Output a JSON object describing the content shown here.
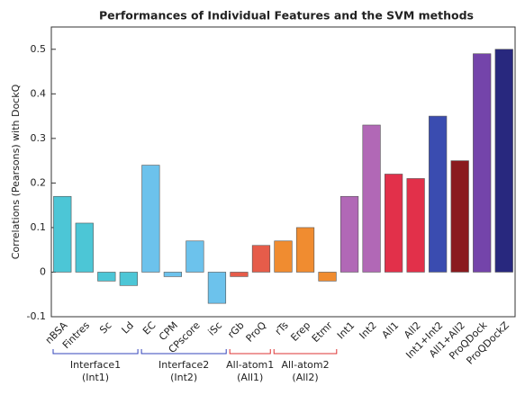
{
  "chart_data": {
    "type": "bar",
    "title": "Performances of Individual Features and the SVM methods",
    "y_label": "Correlations (Pearsons) with DockQ",
    "categories": [
      "nBSA",
      "Fintres",
      "Sc",
      "Ld",
      "EC",
      "CPM",
      "CPscore",
      "iSc",
      "rGb",
      "ProQ",
      "rTs",
      "Erep",
      "Etmr",
      "Int1",
      "Int2",
      "All1",
      "All2",
      "Int1+Int2",
      "All1+All2",
      "ProQDock",
      "ProQDockZ"
    ],
    "values": [
      0.17,
      0.11,
      -0.02,
      -0.03,
      0.24,
      -0.01,
      0.07,
      -0.07,
      -0.01,
      0.06,
      0.07,
      0.1,
      -0.02,
      0.17,
      0.33,
      0.22,
      0.21,
      0.35,
      0.25,
      0.49,
      0.5
    ],
    "colors": [
      "#4cc6d6",
      "#4cc6d6",
      "#4cc6d6",
      "#4cc6d6",
      "#6cc2ec",
      "#6cc2ec",
      "#6cc2ec",
      "#6cc2ec",
      "#e65c4a",
      "#e65c4a",
      "#f08c30",
      "#f08c30",
      "#f08c30",
      "#b168b6",
      "#b168b6",
      "#e2304a",
      "#e2304a",
      "#3a4cb0",
      "#8a1a1e",
      "#7444aa",
      "#28287e"
    ],
    "ylim": [
      -0.1,
      0.55
    ],
    "yticks": [
      -0.1,
      0,
      0.1,
      0.2,
      0.3,
      0.4,
      0.5
    ],
    "groups": [
      {
        "label": "Interface1",
        "abbr": "(Int1)",
        "color": "#3344bb"
      },
      {
        "label": "Interface2",
        "abbr": "(Int2)",
        "color": "#3344bb"
      },
      {
        "label": "All-atom1",
        "abbr": "(All1)",
        "color": "#dd3333"
      },
      {
        "label": "All-atom2",
        "abbr": "(All2)",
        "color": "#dd3333"
      }
    ]
  }
}
